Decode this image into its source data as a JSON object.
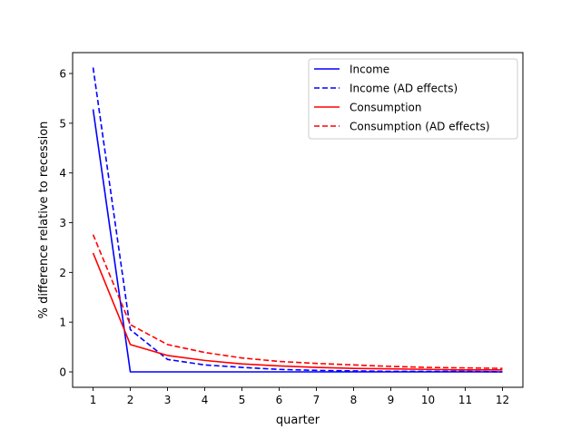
{
  "chart_data": {
    "type": "line",
    "title": "",
    "xlabel": "quarter",
    "ylabel": "% difference relative to recession",
    "xlim": [
      0.45,
      12.55
    ],
    "ylim": [
      -0.31,
      6.42
    ],
    "x": [
      1,
      2,
      3,
      4,
      5,
      6,
      7,
      8,
      9,
      10,
      11,
      12
    ],
    "xticks": [
      1,
      2,
      3,
      4,
      5,
      6,
      7,
      8,
      9,
      10,
      11,
      12
    ],
    "yticks": [
      0,
      1,
      2,
      3,
      4,
      5,
      6
    ],
    "grid": false,
    "legend_position": "upper right",
    "series": [
      {
        "name": "Income",
        "color": "#0000ff",
        "linestyle": "solid",
        "values": [
          5.28,
          0.0,
          0.0,
          0.0,
          0.0,
          0.0,
          0.0,
          0.0,
          0.0,
          0.0,
          0.0,
          0.0
        ]
      },
      {
        "name": "Income (AD effects)",
        "color": "#0000ff",
        "linestyle": "dashed",
        "values": [
          6.12,
          0.85,
          0.25,
          0.14,
          0.09,
          0.05,
          0.03,
          0.02,
          0.01,
          0.01,
          0.01,
          0.0
        ]
      },
      {
        "name": "Consumption",
        "color": "#ff0000",
        "linestyle": "solid",
        "values": [
          2.39,
          0.55,
          0.33,
          0.23,
          0.16,
          0.12,
          0.09,
          0.07,
          0.06,
          0.05,
          0.04,
          0.04
        ]
      },
      {
        "name": "Consumption (AD effects)",
        "color": "#ff0000",
        "linestyle": "dashed",
        "values": [
          2.76,
          0.95,
          0.55,
          0.39,
          0.28,
          0.21,
          0.17,
          0.14,
          0.11,
          0.09,
          0.08,
          0.07
        ]
      }
    ]
  }
}
